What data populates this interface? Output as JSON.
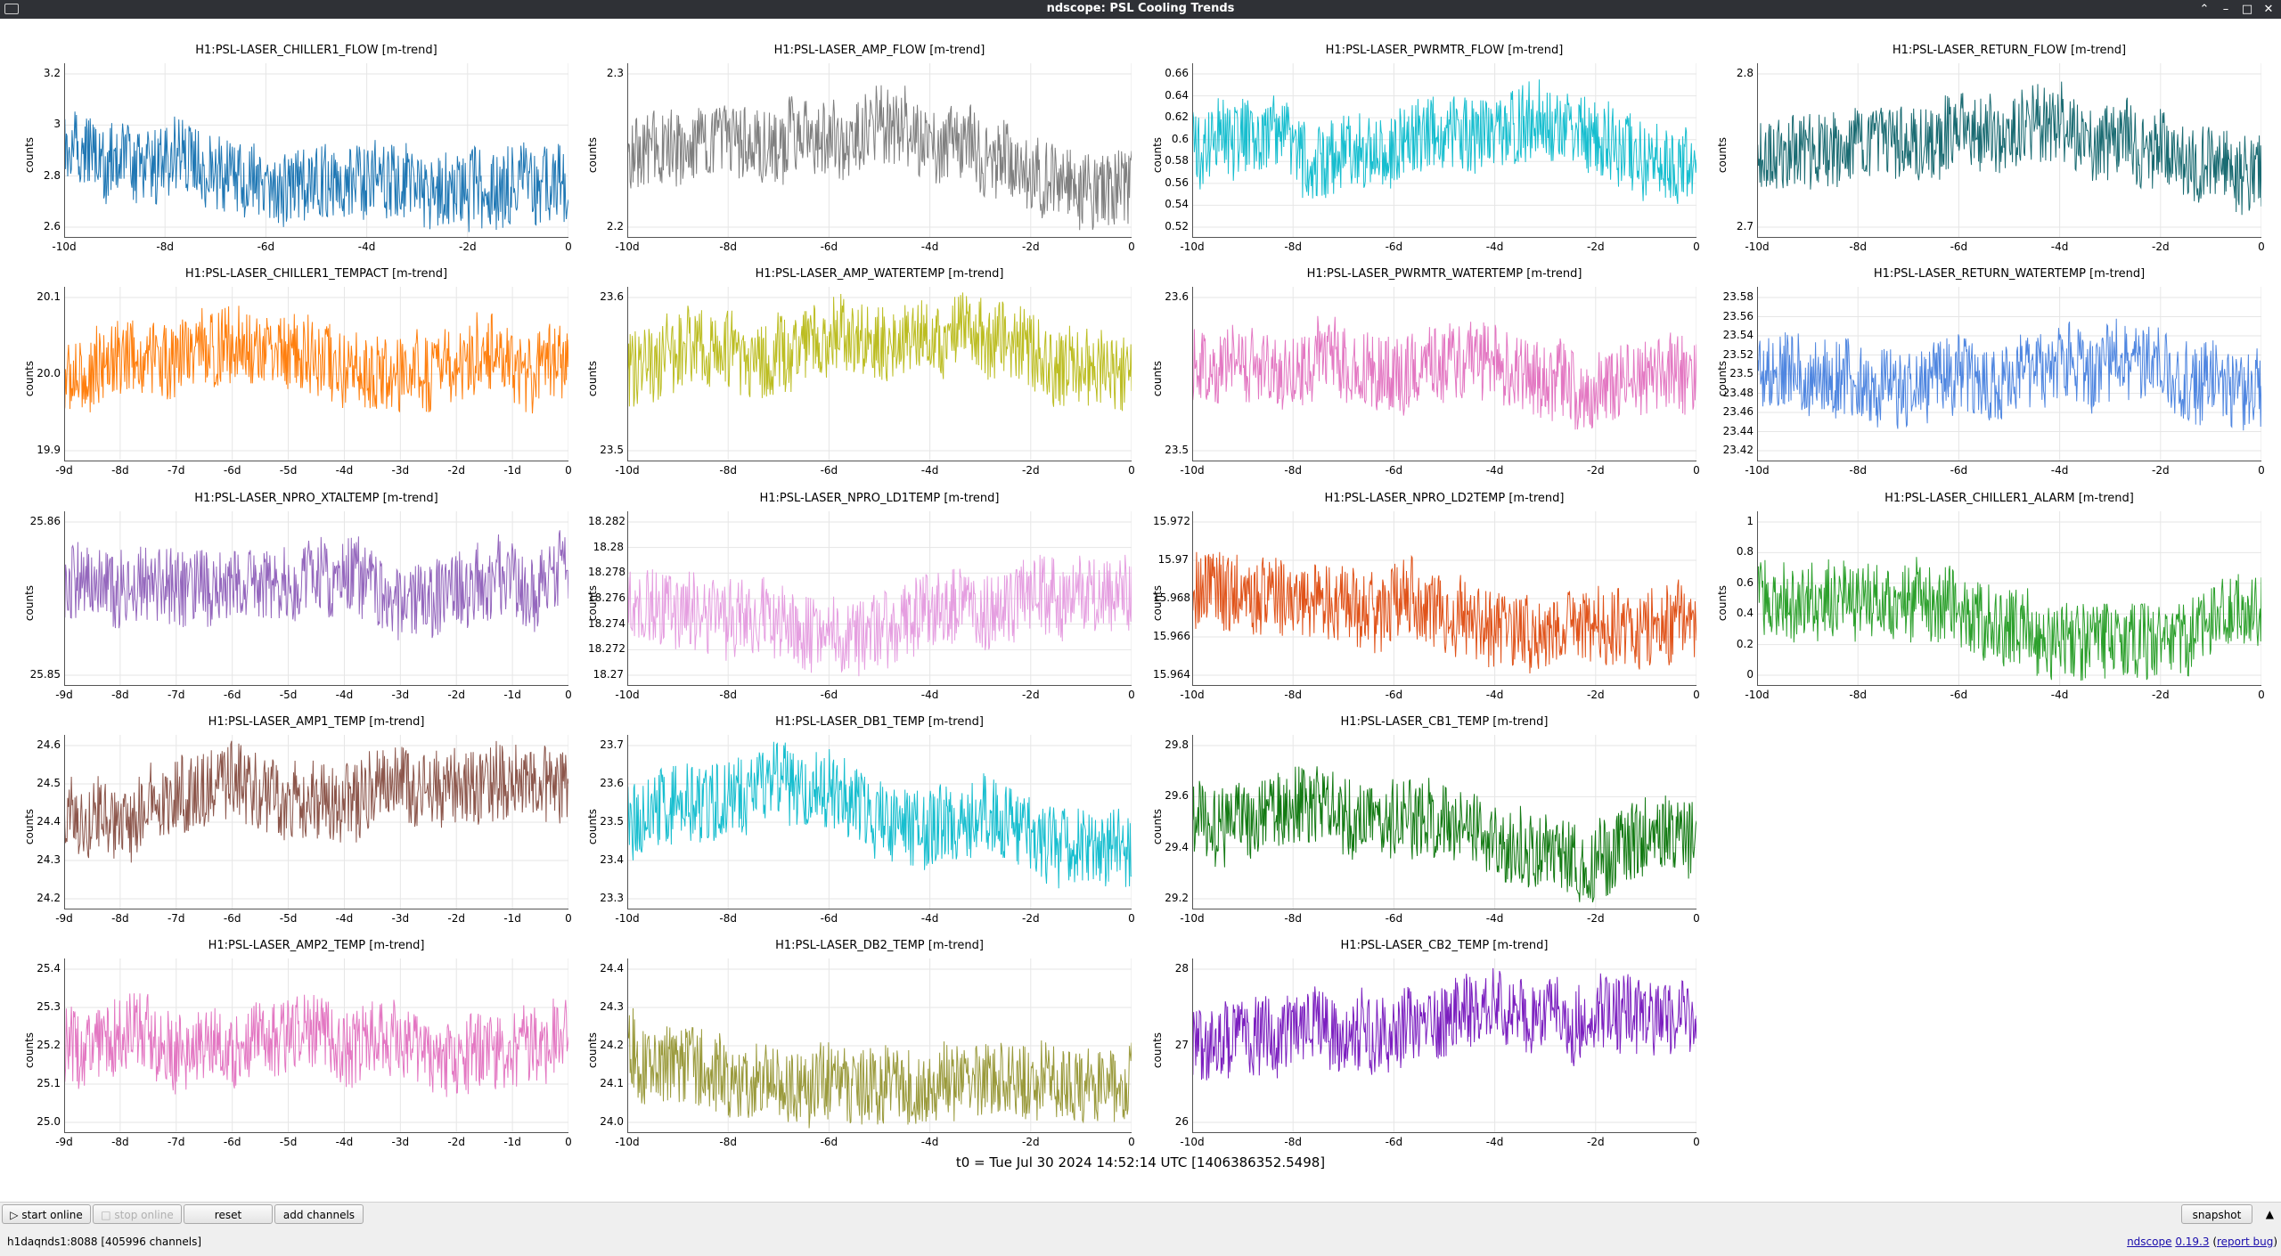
{
  "window": {
    "title": "ndscope: PSL Cooling Trends"
  },
  "t0_label": "t0 = Tue Jul 30 2024 14:52:14 UTC [1406386352.5498]",
  "buttons": {
    "start_online": "start online",
    "stop_online": "stop online",
    "reset": "reset",
    "add_channels": "add channels",
    "snapshot": "snapshot"
  },
  "status": {
    "server": "h1daqnds1:8088  [405996 channels]",
    "app": "ndscope",
    "version": "0.19.3",
    "bug_open": " (",
    "bug": "report bug",
    "bug_close": ")"
  },
  "ylabel": "counts",
  "plots": [
    {
      "title": "H1:PSL-LASER_CHILLER1_FLOW [m-trend]",
      "color": "#1f77b4",
      "yticks": [
        "3.2",
        "3",
        "2.8",
        "2.6"
      ],
      "xticks": [
        "-10d",
        "-8d",
        "-6d",
        "-4d",
        "-2d",
        "0"
      ]
    },
    {
      "title": "H1:PSL-LASER_AMP_FLOW [m-trend]",
      "color": "#7f7f7f",
      "yticks": [
        "2.3",
        "2.2"
      ],
      "xticks": [
        "-10d",
        "-8d",
        "-6d",
        "-4d",
        "-2d",
        "0"
      ]
    },
    {
      "title": "H1:PSL-LASER_PWRMTR_FLOW [m-trend]",
      "color": "#17becf",
      "yticks": [
        "0.66",
        "0.64",
        "0.62",
        "0.6",
        "0.58",
        "0.56",
        "0.54",
        "0.52"
      ],
      "xticks": [
        "-10d",
        "-8d",
        "-6d",
        "-4d",
        "-2d",
        "0"
      ]
    },
    {
      "title": "H1:PSL-LASER_RETURN_FLOW [m-trend]",
      "color": "#1a6b72",
      "yticks": [
        "2.8",
        "2.7"
      ],
      "xticks": [
        "-10d",
        "-8d",
        "-6d",
        "-4d",
        "-2d",
        "0"
      ]
    },
    {
      "title": "H1:PSL-LASER_CHILLER1_TEMPACT [m-trend]",
      "color": "#ff7f0e",
      "yticks": [
        "20.1",
        "20.0",
        "19.9"
      ],
      "xticks": [
        "-9d",
        "-8d",
        "-7d",
        "-6d",
        "-5d",
        "-4d",
        "-3d",
        "-2d",
        "-1d",
        "0"
      ]
    },
    {
      "title": "H1:PSL-LASER_AMP_WATERTEMP [m-trend]",
      "color": "#bcbd22",
      "yticks": [
        "23.6",
        "23.5"
      ],
      "xticks": [
        "-10d",
        "-8d",
        "-6d",
        "-4d",
        "-2d",
        "0"
      ]
    },
    {
      "title": "H1:PSL-LASER_PWRMTR_WATERTEMP [m-trend]",
      "color": "#e377c2",
      "yticks": [
        "23.6",
        "23.5"
      ],
      "xticks": [
        "-10d",
        "-8d",
        "-6d",
        "-4d",
        "-2d",
        "0"
      ]
    },
    {
      "title": "H1:PSL-LASER_RETURN_WATERTEMP [m-trend]",
      "color": "#4f86e0",
      "yticks": [
        "23.58",
        "23.56",
        "23.54",
        "23.52",
        "23.5",
        "23.48",
        "23.46",
        "23.44",
        "23.42"
      ],
      "xticks": [
        "-10d",
        "-8d",
        "-6d",
        "-4d",
        "-2d",
        "0"
      ]
    },
    {
      "title": "H1:PSL-LASER_NPRO_XTALTEMP [m-trend]",
      "color": "#9467bd",
      "yticks": [
        "25.86",
        "25.85"
      ],
      "xticks": [
        "-9d",
        "-8d",
        "-7d",
        "-6d",
        "-5d",
        "-4d",
        "-3d",
        "-2d",
        "-1d",
        "0"
      ]
    },
    {
      "title": "H1:PSL-LASER_NPRO_LD1TEMP [m-trend]",
      "color": "#e59ee0",
      "yticks": [
        "18.282",
        "18.28",
        "18.278",
        "18.276",
        "18.274",
        "18.272",
        "18.27"
      ],
      "xticks": [
        "-10d",
        "-8d",
        "-6d",
        "-4d",
        "-2d",
        "0"
      ]
    },
    {
      "title": "H1:PSL-LASER_NPRO_LD2TEMP [m-trend]",
      "color": "#e0531a",
      "yticks": [
        "15.972",
        "15.97",
        "15.968",
        "15.966",
        "15.964"
      ],
      "xticks": [
        "-10d",
        "-8d",
        "-6d",
        "-4d",
        "-2d",
        "0"
      ]
    },
    {
      "title": "H1:PSL-LASER_CHILLER1_ALARM [m-trend]",
      "color": "#2ca02c",
      "yticks": [
        "1",
        "0.8",
        "0.6",
        "0.4",
        "0.2",
        "0"
      ],
      "xticks": [
        "-10d",
        "-8d",
        "-6d",
        "-4d",
        "-2d",
        "0"
      ]
    },
    {
      "title": "H1:PSL-LASER_AMP1_TEMP [m-trend]",
      "color": "#8c564b",
      "yticks": [
        "24.6",
        "24.5",
        "24.4",
        "24.3",
        "24.2"
      ],
      "xticks": [
        "-9d",
        "-8d",
        "-7d",
        "-6d",
        "-5d",
        "-4d",
        "-3d",
        "-2d",
        "-1d",
        "0"
      ]
    },
    {
      "title": "H1:PSL-LASER_DB1_TEMP [m-trend]",
      "color": "#17becf",
      "yticks": [
        "23.7",
        "23.6",
        "23.5",
        "23.4",
        "23.3"
      ],
      "xticks": [
        "-10d",
        "-8d",
        "-6d",
        "-4d",
        "-2d",
        "0"
      ]
    },
    {
      "title": "H1:PSL-LASER_CB1_TEMP [m-trend]",
      "color": "#137a13",
      "yticks": [
        "29.8",
        "29.6",
        "29.4",
        "29.2"
      ],
      "xticks": [
        "-10d",
        "-8d",
        "-6d",
        "-4d",
        "-2d",
        "0"
      ]
    },
    {
      "title": "H1:PSL-LASER_AMP2_TEMP [m-trend]",
      "color": "#e377c2",
      "yticks": [
        "25.4",
        "25.3",
        "25.2",
        "25.1",
        "25.0"
      ],
      "xticks": [
        "-9d",
        "-8d",
        "-7d",
        "-6d",
        "-5d",
        "-4d",
        "-3d",
        "-2d",
        "-1d",
        "0"
      ]
    },
    {
      "title": "H1:PSL-LASER_DB2_TEMP [m-trend]",
      "color": "#9a9a3c",
      "yticks": [
        "24.4",
        "24.3",
        "24.2",
        "24.1",
        "24.0"
      ],
      "xticks": [
        "-10d",
        "-8d",
        "-6d",
        "-4d",
        "-2d",
        "0"
      ]
    },
    {
      "title": "H1:PSL-LASER_CB2_TEMP [m-trend]",
      "color": "#7b1fbf",
      "yticks": [
        "28",
        "27",
        "26"
      ],
      "xticks": [
        "-10d",
        "-8d",
        "-6d",
        "-4d",
        "-2d",
        "0"
      ]
    }
  ]
}
